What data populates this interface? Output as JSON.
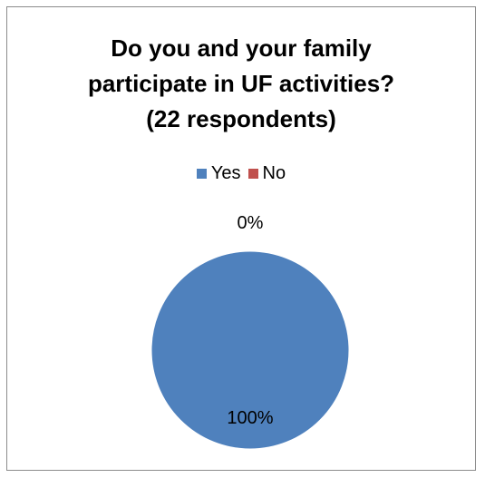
{
  "chart_data": {
    "type": "pie",
    "title_lines": [
      "Do you and your family",
      "participate in UF activities?",
      "(22 respondents)"
    ],
    "categories": [
      "Yes",
      "No"
    ],
    "values": [
      100,
      0
    ],
    "data_labels": [
      "100%",
      "0%"
    ],
    "colors": [
      "#4f81bd",
      "#c0504d"
    ],
    "legend_position": "top"
  }
}
